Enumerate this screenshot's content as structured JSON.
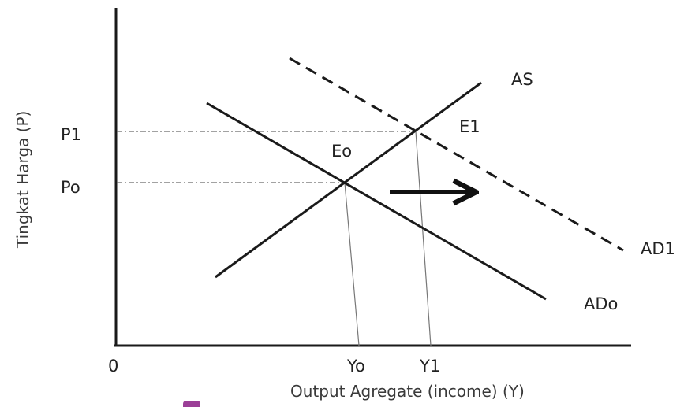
{
  "diagram": {
    "axes": {
      "y_title": "Tingkat Harga  (P)",
      "x_title": "Output Agregate (income) (Y)",
      "origin": "0"
    },
    "price_ticks": {
      "p1": "P1",
      "p0": "Po"
    },
    "output_ticks": {
      "y0": "Yo",
      "y1": "Y1"
    },
    "curves": {
      "as": "AS",
      "ad0": "ADo",
      "ad1": "AD1"
    },
    "equilibria": {
      "e0": "Eo",
      "e1": "E1"
    },
    "colors": {
      "line": "#1a1a1a",
      "guide": "#777777",
      "marker": "#9b3f97"
    }
  }
}
